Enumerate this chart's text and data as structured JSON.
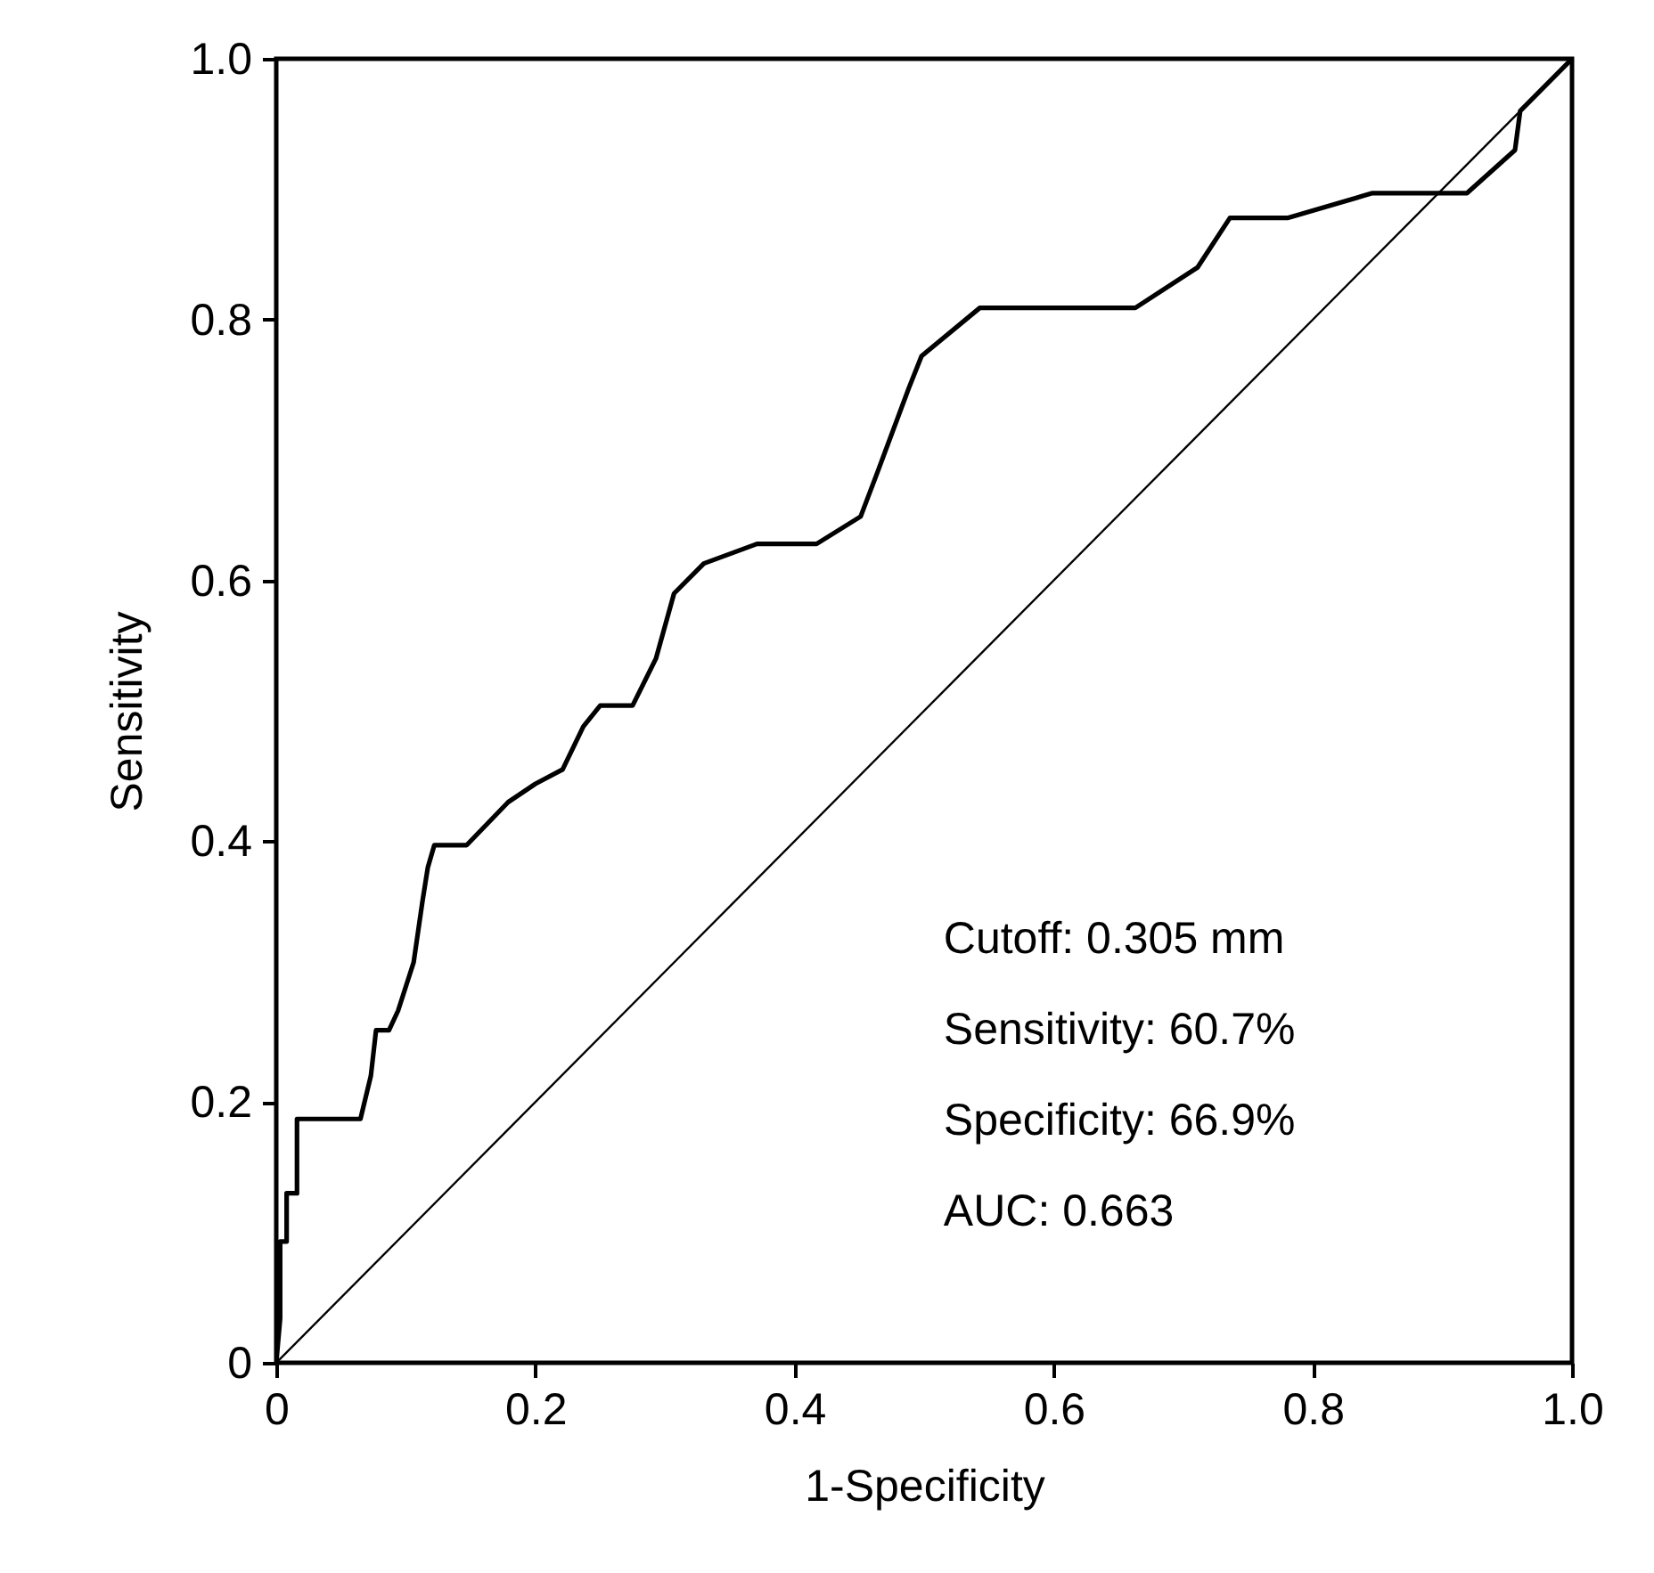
{
  "chart_data": {
    "type": "line",
    "xlabel": "1-Specificity",
    "ylabel": "Sensitivity",
    "xlim": [
      0,
      1
    ],
    "ylim": [
      0,
      1
    ],
    "xticks": [
      {
        "value": 0,
        "label": "0"
      },
      0.2,
      0.4,
      0.6,
      0.8,
      {
        "value": 1,
        "label": "1.0"
      }
    ],
    "yticks": [
      {
        "value": 0,
        "label": "0"
      },
      0.2,
      0.4,
      0.6,
      0.8,
      {
        "value": 1,
        "label": "1.0"
      }
    ],
    "grid": false,
    "marker": "none",
    "line_style": "solid",
    "series": [
      {
        "color": "#000000",
        "x": [
          0,
          0.003,
          0.003,
          0.008,
          0.008,
          0.016,
          0.016,
          0.065,
          0.073,
          0.077,
          0.087,
          0.094,
          0.106,
          0.113,
          0.117,
          0.122,
          0.147,
          0.179,
          0.2,
          0.221,
          0.237,
          0.25,
          0.275,
          0.293,
          0.307,
          0.33,
          0.371,
          0.417,
          0.451,
          0.464,
          0.488,
          0.498,
          0.543,
          0.612,
          0.663,
          0.711,
          0.736,
          0.781,
          0.846,
          0.891,
          0.919,
          0.956,
          0.96,
          1
        ],
        "values": [
          0,
          0.034,
          0.093,
          0.093,
          0.13,
          0.13,
          0.187,
          0.187,
          0.22,
          0.255,
          0.255,
          0.27,
          0.307,
          0.355,
          0.38,
          0.397,
          0.397,
          0.43,
          0.444,
          0.455,
          0.488,
          0.504,
          0.504,
          0.54,
          0.59,
          0.613,
          0.628,
          0.628,
          0.649,
          0.683,
          0.747,
          0.772,
          0.809,
          0.809,
          0.809,
          0.84,
          0.878,
          0.878,
          0.897,
          0.897,
          0.897,
          0.93,
          0.96,
          1
        ]
      },
      {
        "color": "#000000",
        "x": [
          0,
          1
        ],
        "values": [
          0,
          1
        ]
      }
    ],
    "annotations": [
      "Cutoff: 0.305 mm",
      "Sensitivity: 60.7%",
      "Specificity: 66.9%",
      "AUC: 0.663"
    ]
  }
}
